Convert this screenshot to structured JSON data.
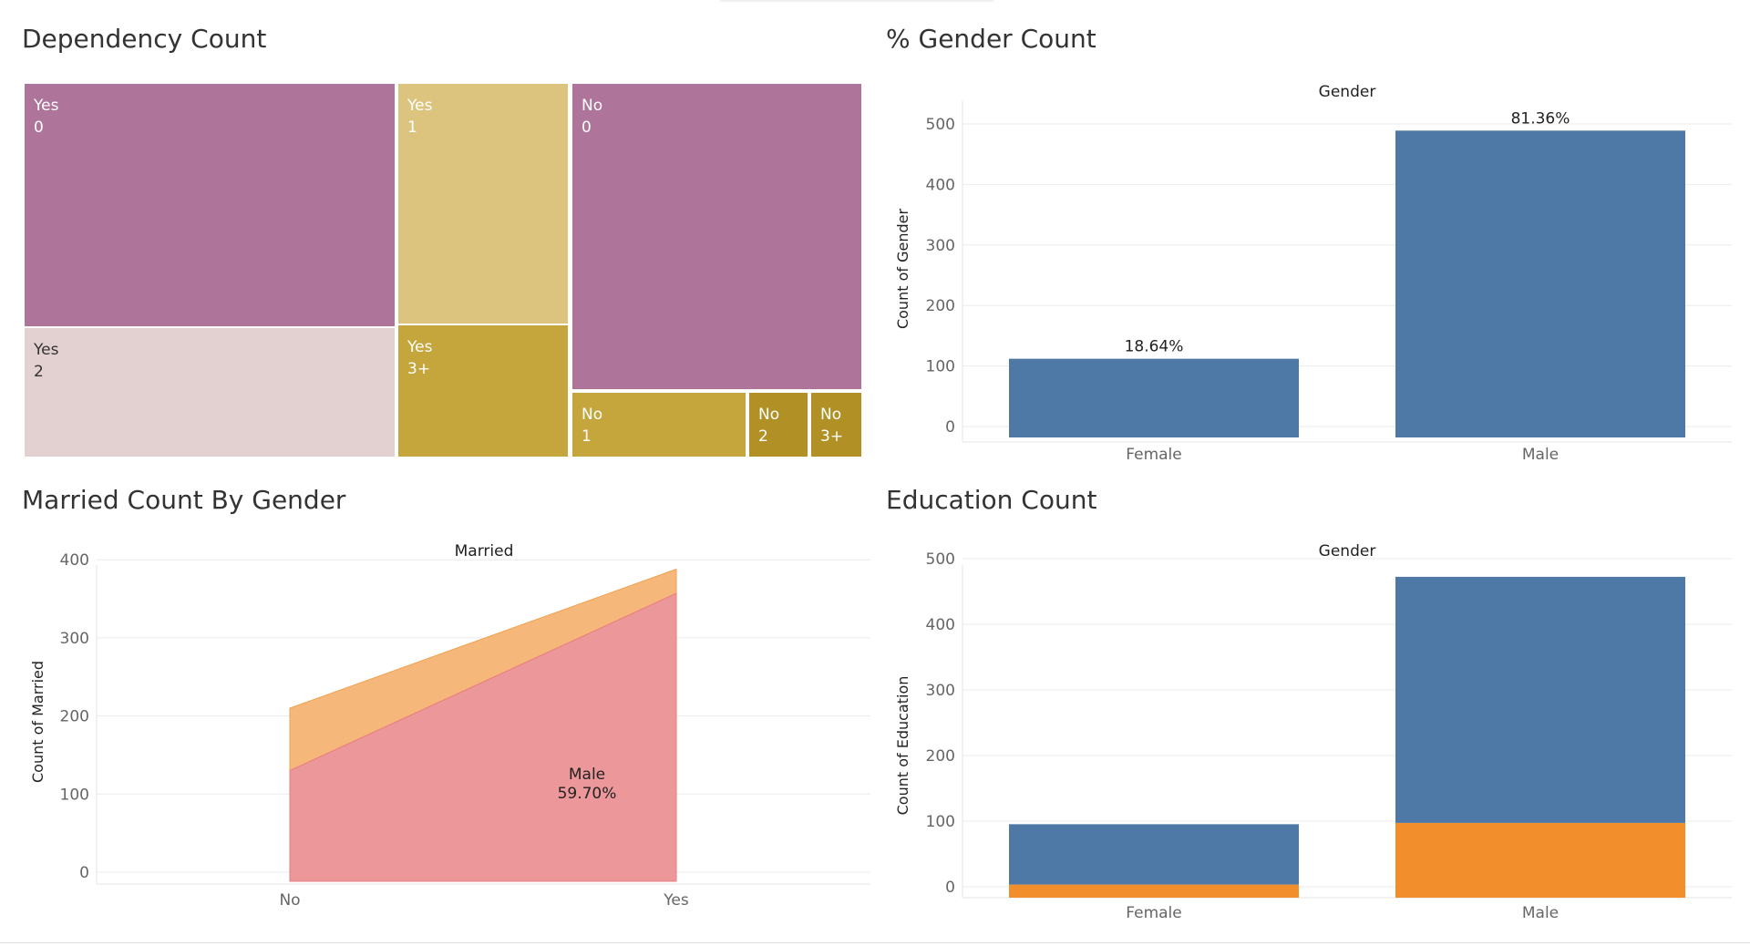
{
  "panels": {
    "dependency": {
      "title": "Dependency Count"
    },
    "gender": {
      "title": "% Gender Count"
    },
    "married": {
      "title": "Married Count By Gender"
    },
    "education": {
      "title": "Education Count"
    }
  },
  "colors": {
    "purple": "#ae7499",
    "tan": "#dcc47f",
    "pink": "#e2d1d0",
    "gold": "#c5a63c",
    "gold_dark": "#b19125",
    "blue": "#4e79a7",
    "orange": "#f28e2b",
    "area_orange": "#f5b77a",
    "area_red": "#ec979a",
    "grid": "#ebebeb"
  },
  "chart_data": [
    {
      "type": "treemap",
      "title": "Dependency Count",
      "nodes": [
        {
          "married": "Yes",
          "dependents": "0",
          "color": "purple"
        },
        {
          "married": "Yes",
          "dependents": "1",
          "color": "tan"
        },
        {
          "married": "Yes",
          "dependents": "2",
          "color": "pink"
        },
        {
          "married": "Yes",
          "dependents": "3+",
          "color": "gold"
        },
        {
          "married": "No",
          "dependents": "0",
          "color": "purple"
        },
        {
          "married": "No",
          "dependents": "1",
          "color": "gold"
        },
        {
          "married": "No",
          "dependents": "2",
          "color": "gold_dark"
        },
        {
          "married": "No",
          "dependents": "3+",
          "color": "gold_dark"
        }
      ]
    },
    {
      "type": "bar",
      "title": "% Gender Count",
      "header": "Gender",
      "ylabel": "Count of Gender",
      "ylim": [
        0,
        540
      ],
      "yticks": [
        0,
        100,
        200,
        300,
        400,
        500
      ],
      "categories": [
        "Female",
        "Male"
      ],
      "values": [
        112,
        489
      ],
      "labels": [
        "18.64%",
        "81.36%"
      ],
      "color": "blue"
    },
    {
      "type": "area",
      "title": "Married Count By Gender",
      "header": "Married",
      "ylabel": "Count of Married",
      "ylim": [
        -15,
        400
      ],
      "yticks": [
        0,
        100,
        200,
        300,
        400
      ],
      "categories": [
        "No",
        "Yes"
      ],
      "series": [
        {
          "name": "Male",
          "values": [
            130,
            357
          ],
          "color": "area_red"
        },
        {
          "name": "",
          "values": [
            80,
            31
          ],
          "color": "area_orange"
        }
      ],
      "annotation": {
        "series": "Male",
        "value": "59.70%"
      }
    },
    {
      "type": "bar",
      "title": "Education Count",
      "header": "Gender",
      "ylabel": "Count of Education",
      "ylim": [
        0,
        520
      ],
      "yticks": [
        0,
        100,
        200,
        300,
        400,
        500
      ],
      "categories": [
        "Female",
        "Male"
      ],
      "series": [
        {
          "name": "",
          "values": [
            20,
            114
          ],
          "color": "orange"
        },
        {
          "name": "",
          "values": [
            92,
            375
          ],
          "color": "blue"
        }
      ]
    }
  ]
}
